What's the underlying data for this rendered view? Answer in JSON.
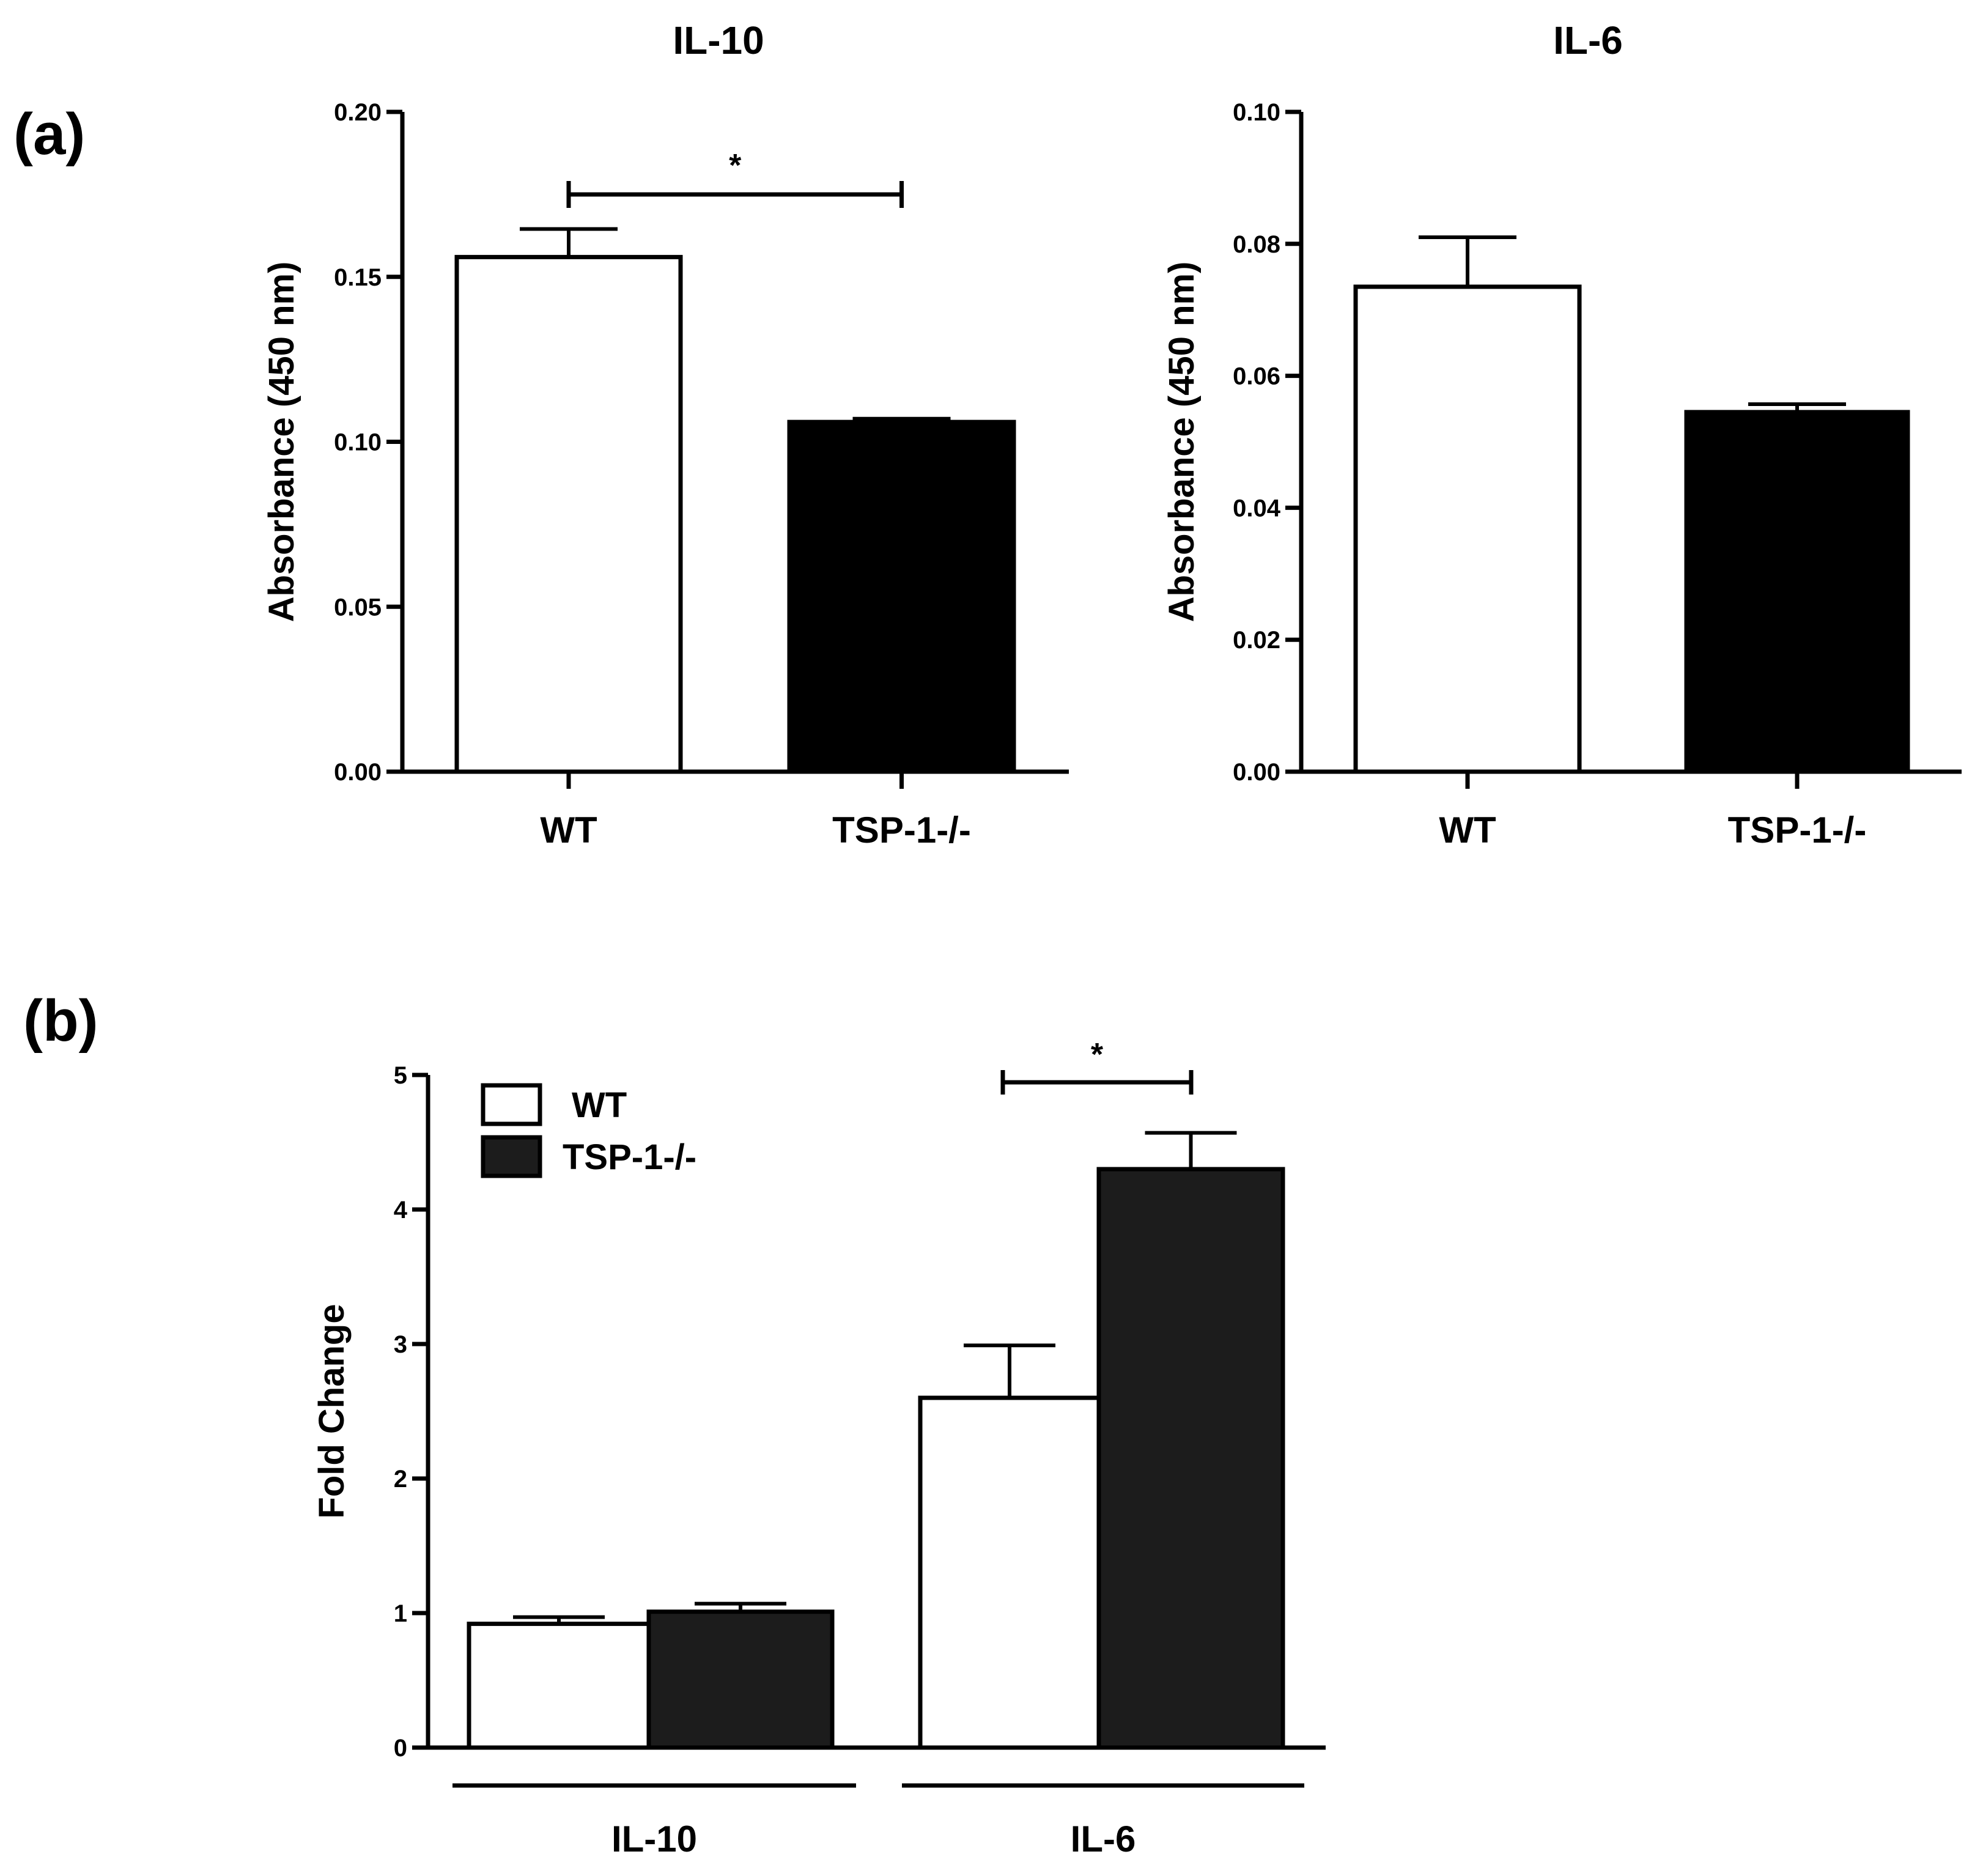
{
  "figure": {
    "panel_labels": [
      "(a)",
      "(b)"
    ]
  },
  "chart_data": [
    {
      "id": "a_il10",
      "type": "bar",
      "title": "IL-10",
      "ylabel": "Absorbance (450 nm)",
      "xlabel": "",
      "categories": [
        "WT",
        "TSP-1-/-"
      ],
      "values": [
        0.156,
        0.106
      ],
      "errors": [
        0.0085,
        0.001
      ],
      "fills": [
        "#ffffff",
        "#000000"
      ],
      "ylim": [
        0,
        0.2
      ],
      "yticks": [
        0.0,
        0.05,
        0.1,
        0.15,
        0.2
      ],
      "ytick_labels": [
        "0.00",
        "0.05",
        "0.10",
        "0.15",
        "0.20"
      ],
      "significance": [
        {
          "from": 0,
          "to": 1,
          "label": "*"
        }
      ]
    },
    {
      "id": "a_il6",
      "type": "bar",
      "title": "IL-6",
      "ylabel": "Absorbance (450 nm)",
      "xlabel": "",
      "categories": [
        "WT",
        "TSP-1-/-"
      ],
      "values": [
        0.0735,
        0.0545
      ],
      "errors": [
        0.0075,
        0.0012
      ],
      "fills": [
        "#ffffff",
        "#000000"
      ],
      "ylim": [
        0,
        0.1
      ],
      "yticks": [
        0.0,
        0.02,
        0.04,
        0.06,
        0.08,
        0.1
      ],
      "ytick_labels": [
        "0.00",
        "0.02",
        "0.04",
        "0.06",
        "0.08",
        "0.10"
      ],
      "significance": []
    },
    {
      "id": "b",
      "type": "bar",
      "title": "",
      "ylabel": "Fold Change",
      "xlabel": "",
      "categories": [
        "IL-10",
        "IL-6"
      ],
      "series": [
        {
          "name": "WT",
          "values": [
            0.92,
            2.6
          ],
          "errors": [
            0.05,
            0.39
          ],
          "fill": "#ffffff"
        },
        {
          "name": "TSP-1-/-",
          "values": [
            1.01,
            4.3
          ],
          "errors": [
            0.06,
            0.27
          ],
          "fill": "#1c1c1c"
        }
      ],
      "ylim": [
        0,
        5
      ],
      "yticks": [
        0,
        1,
        2,
        3,
        4,
        5
      ],
      "ytick_labels": [
        "0",
        "1",
        "2",
        "3",
        "4",
        "5"
      ],
      "legend": "top-left",
      "significance": [
        {
          "category": 1,
          "label": "*"
        }
      ]
    }
  ]
}
